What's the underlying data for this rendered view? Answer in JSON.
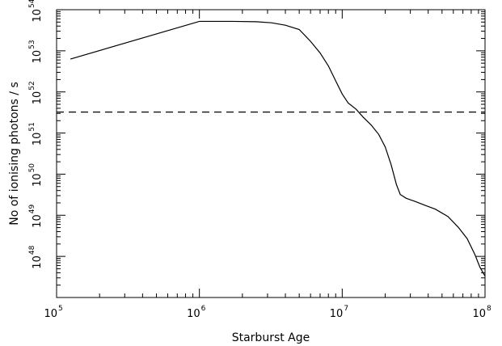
{
  "chart_data": {
    "type": "line",
    "title": "",
    "xlabel": "Starburst Age",
    "ylabel": "No of ionising photons / s",
    "x_scale": "log",
    "y_scale": "log",
    "xlim": [
      100000,
      100000000
    ],
    "ylim": [
      1e+47,
      1e+54
    ],
    "x_ticks": [
      {
        "value": 100000,
        "base": "10",
        "exp": "5"
      },
      {
        "value": 1000000,
        "base": "10",
        "exp": "6"
      },
      {
        "value": 10000000,
        "base": "10",
        "exp": "7"
      },
      {
        "value": 100000000,
        "base": "10",
        "exp": "8"
      }
    ],
    "y_ticks": [
      {
        "value": 1e+48,
        "base": "10",
        "exp": "48"
      },
      {
        "value": 1e+49,
        "base": "10",
        "exp": "49"
      },
      {
        "value": 1e+50,
        "base": "10",
        "exp": "50"
      },
      {
        "value": 1e+51,
        "base": "10",
        "exp": "51"
      },
      {
        "value": 1e+52,
        "base": "10",
        "exp": "52"
      },
      {
        "value": 1e+53,
        "base": "10",
        "exp": "53"
      },
      {
        "value": 1e+54,
        "base": "10",
        "exp": "54"
      }
    ],
    "grid": false,
    "legend": "none",
    "series": [
      {
        "style": "solid",
        "color": "#000000",
        "x": [
          125000,
          1000000,
          1700000,
          2500000,
          3200000,
          4000000,
          5000000,
          6000000,
          7000000,
          8000000,
          9000000,
          10000000,
          11000000,
          12500000,
          14000000,
          16000000,
          18000000,
          20000000,
          22000000,
          24000000,
          25500000,
          28000000,
          32000000,
          38000000,
          45000000,
          55000000,
          65000000,
          75000000,
          85000000,
          92000000,
          100000000
        ],
        "y": [
          6.3e+52,
          5.2e+53,
          5.2e+53,
          5.1e+53,
          4.8e+53,
          4.2e+53,
          3.3e+53,
          1.7e+53,
          8.9e+52,
          4.3e+52,
          1.86e+52,
          8.9e+51,
          5.4e+51,
          3.8e+51,
          2.45e+51,
          1.55e+51,
          9.3e+50,
          4.6e+50,
          1.7e+50,
          5.5e+49,
          3.2e+49,
          2.6e+49,
          2.2e+49,
          1.75e+49,
          1.4e+49,
          9.3e+48,
          5.1e+48,
          2.7e+48,
          1.1e+48,
          5.5e+47,
          3.3e+47
        ]
      },
      {
        "style": "dashed",
        "color": "#000000",
        "x": [
          100000,
          100000000
        ],
        "y": [
          3.24e+51,
          3.24e+51
        ]
      }
    ]
  }
}
